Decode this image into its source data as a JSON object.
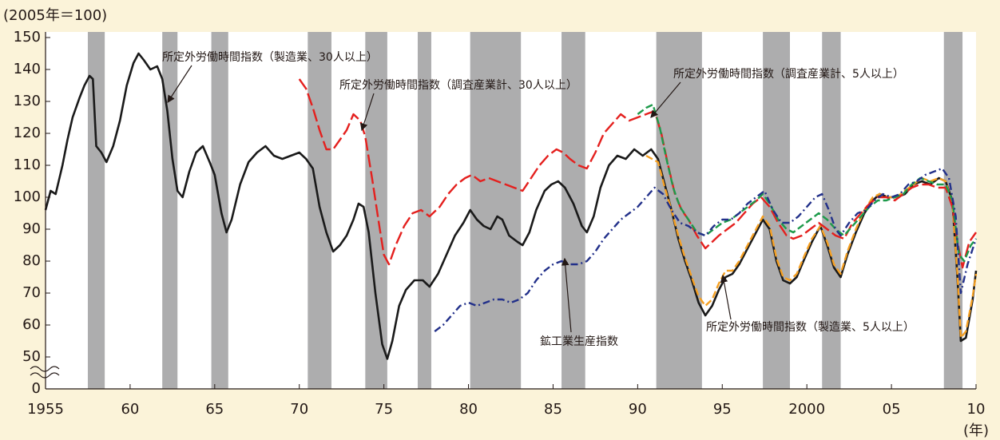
{
  "chart_data": {
    "type": "line",
    "y_unit": "(2005年＝100)",
    "x_unit": "(年)",
    "xlim": [
      1955,
      2010
    ],
    "xticks": [
      1955,
      {
        "value": 1960,
        "label": "60"
      },
      {
        "value": 1965,
        "label": "65"
      },
      {
        "value": 1970,
        "label": "70"
      },
      {
        "value": 1975,
        "label": "75"
      },
      {
        "value": 1980,
        "label": "80"
      },
      {
        "value": 1985,
        "label": "85"
      },
      {
        "value": 1990,
        "label": "90"
      },
      {
        "value": 1995,
        "label": "95"
      },
      2000,
      {
        "value": 2005,
        "label": "05"
      },
      {
        "value": 2010,
        "label": "10"
      }
    ],
    "ylim": [
      0,
      150
    ],
    "yticks": [
      0,
      50,
      60,
      70,
      80,
      90,
      100,
      110,
      120,
      130,
      140,
      150
    ],
    "axis_break": [
      0,
      50
    ],
    "shaded_periods": [
      [
        1957.5,
        1958.5
      ],
      [
        1961.9,
        1962.8
      ],
      [
        1964.8,
        1965.8
      ],
      [
        1970.5,
        1971.9
      ],
      [
        1973.9,
        1975.2
      ],
      [
        1977.0,
        1977.8
      ],
      [
        1980.1,
        1983.1
      ],
      [
        1985.5,
        1986.9
      ],
      [
        1991.1,
        1993.8
      ],
      [
        1997.4,
        1999.0
      ],
      [
        2000.9,
        2002.0
      ],
      [
        2008.1,
        2009.2
      ]
    ],
    "shade_color": "#adadae",
    "series": [
      {
        "name": "所定外労働時間指数（製造業、30人以上）",
        "color": "#1a1a1a",
        "linestyle": "solid",
        "x": [
          1955.0,
          1955.3,
          1955.6,
          1956.0,
          1956.3,
          1956.6,
          1957.0,
          1957.3,
          1957.6,
          1957.8,
          1958.0,
          1958.3,
          1958.6,
          1959.0,
          1959.4,
          1959.8,
          1960.2,
          1960.5,
          1960.8,
          1961.2,
          1961.6,
          1961.9,
          1962.2,
          1962.5,
          1962.8,
          1963.1,
          1963.5,
          1963.9,
          1964.3,
          1964.7,
          1965.0,
          1965.4,
          1965.7,
          1966.0,
          1966.5,
          1967.0,
          1967.5,
          1968.0,
          1968.5,
          1969.0,
          1969.5,
          1970.0,
          1970.4,
          1970.8,
          1971.2,
          1971.6,
          1972.0,
          1972.4,
          1972.8,
          1973.2,
          1973.5,
          1973.8,
          1974.1,
          1974.5,
          1974.9,
          1975.2,
          1975.5,
          1975.9,
          1976.3,
          1976.8,
          1977.3,
          1977.7,
          1978.2,
          1978.7,
          1979.2,
          1979.7,
          1980.1,
          1980.5,
          1980.9,
          1981.3,
          1981.7,
          1982.0,
          1982.4,
          1982.9,
          1983.2,
          1983.6,
          1984.0,
          1984.5,
          1984.9,
          1985.3,
          1985.7,
          1986.2,
          1986.7,
          1987.0,
          1987.4,
          1987.8,
          1988.3,
          1988.8,
          1989.3,
          1989.8,
          1990.3,
          1990.8,
          1991.2,
          1991.6,
          1992.0,
          1992.4,
          1992.8,
          1993.2,
          1993.6,
          1994.0,
          1994.4,
          1994.8,
          1995.2,
          1995.6,
          1996.0,
          1996.5,
          1997.0,
          1997.4,
          1997.8,
          1998.2,
          1998.6,
          1999.0,
          1999.4,
          1999.8,
          2000.3,
          2000.8,
          2001.2,
          2001.6,
          2002.0,
          2002.4,
          2002.9,
          2003.4,
          2003.9,
          2004.3,
          2004.8,
          2005.3,
          2005.8,
          2006.3,
          2006.8,
          2007.3,
          2007.8,
          2008.2,
          2008.6,
          2008.9,
          2009.1,
          2009.4,
          2009.8,
          2010.0
        ],
        "values": [
          96,
          102,
          101,
          110,
          118,
          125,
          131,
          135,
          138,
          137,
          116,
          114,
          111,
          116,
          124,
          135,
          142,
          145,
          143,
          140,
          141,
          137,
          127,
          112,
          102,
          100,
          108,
          114,
          116,
          111,
          107,
          95,
          89,
          93,
          104,
          111,
          114,
          116,
          113,
          112,
          113,
          114,
          112,
          109,
          97,
          89,
          83,
          85,
          88,
          93,
          98,
          97,
          89,
          70,
          54,
          47,
          55,
          66,
          71,
          74,
          74,
          72,
          76,
          82,
          88,
          92,
          96,
          93,
          91,
          90,
          94,
          93,
          88,
          86,
          85,
          89,
          96,
          102,
          104,
          105,
          103,
          98,
          91,
          89,
          94,
          103,
          110,
          113,
          112,
          115,
          113,
          115,
          112,
          104,
          96,
          87,
          80,
          74,
          67,
          63,
          66,
          71,
          75,
          76,
          79,
          84,
          89,
          93,
          90,
          80,
          74,
          73,
          75,
          80,
          86,
          91,
          85,
          78,
          75,
          82,
          89,
          95,
          99,
          101,
          100,
          100,
          101,
          104,
          105,
          104,
          106,
          105,
          99,
          75,
          55,
          56,
          68,
          77
        ]
      },
      {
        "name": "所定外労働時間指数（製造業、5人以上）",
        "color": "#f5a023",
        "linestyle": "dashed",
        "x": [
          1990.5,
          1991.2,
          1991.6,
          1992.0,
          1992.4,
          1992.8,
          1993.2,
          1993.6,
          1994.0,
          1994.4,
          1994.8,
          1995.2,
          1995.6,
          1996.0,
          1996.5,
          1997.0,
          1997.4,
          1997.8,
          1998.2,
          1998.6,
          1999.0,
          1999.4,
          1999.8,
          2000.3,
          2000.8,
          2001.2,
          2001.6,
          2002.0,
          2002.4,
          2002.9,
          2003.4,
          2003.9,
          2004.3,
          2004.8,
          2005.3,
          2005.8,
          2006.3,
          2006.8,
          2007.3,
          2007.8,
          2008.2,
          2008.6,
          2008.9,
          2009.1,
          2009.4,
          2009.8,
          2010.0
        ],
        "values": [
          113,
          111,
          103,
          96,
          88,
          81,
          75,
          69,
          66,
          68,
          73,
          77,
          77,
          80,
          85,
          90,
          94,
          91,
          81,
          75,
          74,
          76,
          81,
          87,
          91,
          86,
          79,
          76,
          83,
          90,
          96,
          100,
          101,
          100,
          100,
          102,
          104,
          106,
          105,
          106,
          105,
          98,
          76,
          56,
          58,
          69,
          76
        ]
      },
      {
        "name": "所定外労働時間指数（調査産業計、30人以上）",
        "color": "#e4201e",
        "linestyle": "longdash",
        "x": [
          1970.0,
          1970.4,
          1970.8,
          1971.2,
          1971.6,
          1972.0,
          1972.4,
          1972.8,
          1973.2,
          1973.6,
          1973.9,
          1974.3,
          1974.7,
          1975.0,
          1975.3,
          1975.7,
          1976.2,
          1976.7,
          1977.2,
          1977.7,
          1978.3,
          1978.8,
          1979.3,
          1979.8,
          1980.2,
          1980.7,
          1981.2,
          1981.7,
          1982.2,
          1982.7,
          1983.2,
          1983.7,
          1984.2,
          1984.7,
          1985.2,
          1985.6,
          1986.0,
          1986.5,
          1987.0,
          1987.5,
          1988.0,
          1988.5,
          1989.0,
          1989.5,
          1990.0,
          1990.5,
          1991.0,
          1991.4,
          1991.8,
          1992.2,
          1992.6,
          1993.0,
          1993.5,
          1994.0,
          1994.4,
          1994.8,
          1995.3,
          1995.8,
          1996.3,
          1996.8,
          1997.3,
          1997.8,
          1998.3,
          1998.8,
          1999.2,
          1999.7,
          2000.2,
          2000.7,
          2001.2,
          2001.7,
          2002.2,
          2002.7,
          2003.2,
          2003.7,
          2004.2,
          2004.7,
          2005.2,
          2005.7,
          2006.2,
          2006.7,
          2007.2,
          2007.7,
          2008.2,
          2008.6,
          2008.9,
          2009.2,
          2009.6,
          2010.0
        ],
        "values": [
          137,
          134,
          128,
          121,
          115,
          115,
          118,
          121,
          126,
          124,
          119,
          106,
          92,
          82,
          79,
          85,
          91,
          95,
          96,
          94,
          97,
          101,
          104,
          106,
          107,
          105,
          106,
          105,
          104,
          103,
          102,
          106,
          110,
          113,
          115,
          114,
          112,
          110,
          109,
          114,
          120,
          123,
          126,
          124,
          125,
          126,
          127,
          120,
          110,
          101,
          96,
          93,
          88,
          84,
          86,
          88,
          90,
          92,
          95,
          98,
          100,
          97,
          92,
          88,
          87,
          88,
          90,
          92,
          90,
          88,
          87,
          92,
          95,
          98,
          100,
          100,
          99,
          101,
          103,
          104,
          104,
          103,
          103,
          97,
          86,
          78,
          86,
          89
        ]
      },
      {
        "name": "所定外労働時間指数（調査産業計、5人以上）",
        "color": "#1d9a4a",
        "linestyle": "dashed",
        "x": [
          1990.0,
          1990.5,
          1990.9,
          1991.3,
          1991.7,
          1992.1,
          1992.5,
          1993.0,
          1993.5,
          1994.0,
          1994.5,
          1995.0,
          1995.5,
          1996.0,
          1996.5,
          1997.0,
          1997.4,
          1997.8,
          1998.3,
          1998.8,
          1999.2,
          1999.7,
          2000.2,
          2000.7,
          2001.2,
          2001.7,
          2002.2,
          2002.7,
          2003.2,
          2003.7,
          2004.2,
          2004.7,
          2005.2,
          2005.7,
          2006.2,
          2006.7,
          2007.2,
          2007.7,
          2008.2,
          2008.6,
          2009.0,
          2009.3,
          2009.7,
          2010.0
        ],
        "values": [
          126,
          128,
          129,
          122,
          112,
          103,
          97,
          93,
          89,
          88,
          90,
          92,
          93,
          95,
          97,
          99,
          101,
          98,
          93,
          90,
          89,
          91,
          93,
          95,
          93,
          90,
          88,
          91,
          94,
          97,
          99,
          99,
          100,
          101,
          104,
          106,
          105,
          104,
          104,
          99,
          82,
          80,
          85,
          87
        ]
      },
      {
        "name": "鉱工業生産指数",
        "color": "#22308a",
        "linestyle": "dashdot",
        "x": [
          1978.0,
          1978.5,
          1979.0,
          1979.5,
          1980.0,
          1980.5,
          1981.0,
          1981.5,
          1982.0,
          1982.5,
          1983.0,
          1983.5,
          1984.0,
          1984.5,
          1985.0,
          1985.5,
          1986.0,
          1986.5,
          1987.0,
          1987.5,
          1988.0,
          1988.5,
          1989.0,
          1989.5,
          1990.0,
          1990.5,
          1991.0,
          1991.5,
          1992.0,
          1992.5,
          1993.0,
          1993.5,
          1994.0,
          1994.5,
          1995.0,
          1995.5,
          1996.0,
          1996.5,
          1997.0,
          1997.5,
          1998.0,
          1998.5,
          1999.0,
          1999.5,
          2000.0,
          2000.5,
          2000.9,
          2001.3,
          2001.7,
          2002.0,
          2002.5,
          2003.0,
          2003.5,
          2004.0,
          2004.5,
          2005.0,
          2005.5,
          2006.0,
          2006.5,
          2007.0,
          2007.5,
          2008.0,
          2008.4,
          2008.8,
          2009.1,
          2009.5,
          2010.0
        ],
        "values": [
          58,
          60,
          63,
          66,
          67,
          66,
          67,
          68,
          68,
          67,
          68,
          70,
          74,
          77,
          79,
          80,
          79,
          79,
          80,
          83,
          87,
          90,
          93,
          95,
          97,
          100,
          103,
          101,
          96,
          92,
          91,
          89,
          88,
          91,
          93,
          93,
          95,
          98,
          100,
          102,
          96,
          92,
          92,
          94,
          97,
          100,
          101,
          96,
          90,
          88,
          92,
          95,
          96,
          99,
          101,
          100,
          101,
          104,
          105,
          107,
          108,
          109,
          106,
          94,
          70,
          79,
          87
        ]
      }
    ]
  }
}
